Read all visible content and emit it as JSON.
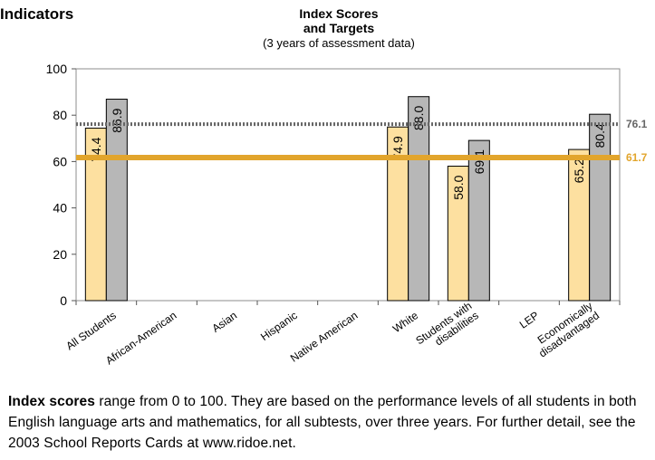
{
  "header": {
    "section_label": "Indicators"
  },
  "chart_data": {
    "type": "bar",
    "title": "Index Scores\nand Targets",
    "subtitle": "(3 years of assessment data)",
    "ylim": [
      0,
      100
    ],
    "yticks": [
      0,
      20,
      40,
      60,
      80,
      100
    ],
    "categories": [
      "All Students",
      "African-American",
      "Asian",
      "Hispanic",
      "Native American",
      "White",
      "Students with\ndisabilities",
      "LEP",
      "Economically\ndisadvantaged"
    ],
    "series": [
      {
        "color": "#fde0a0",
        "values": [
          74.4,
          null,
          null,
          null,
          null,
          74.9,
          58.0,
          null,
          65.2
        ]
      },
      {
        "color": "#b7b7b7",
        "values": [
          86.9,
          null,
          null,
          null,
          null,
          88.0,
          69.1,
          null,
          80.4
        ]
      }
    ],
    "reference_lines": [
      {
        "value": 76.1,
        "label": "76.1",
        "style": "dotted",
        "color": "#666666"
      },
      {
        "value": 61.7,
        "label": "61.7",
        "style": "solid",
        "color": "#e2a52c"
      }
    ],
    "grid": false,
    "legend": "none"
  },
  "footnote": {
    "bold": "Index scores",
    "text": " range from 0 to 100.  They are based on the performance levels of all students in both English language arts and mathematics, for all subtests, over three years. For further detail, see the 2003 School Reports Cards at www.ridoe.net."
  }
}
